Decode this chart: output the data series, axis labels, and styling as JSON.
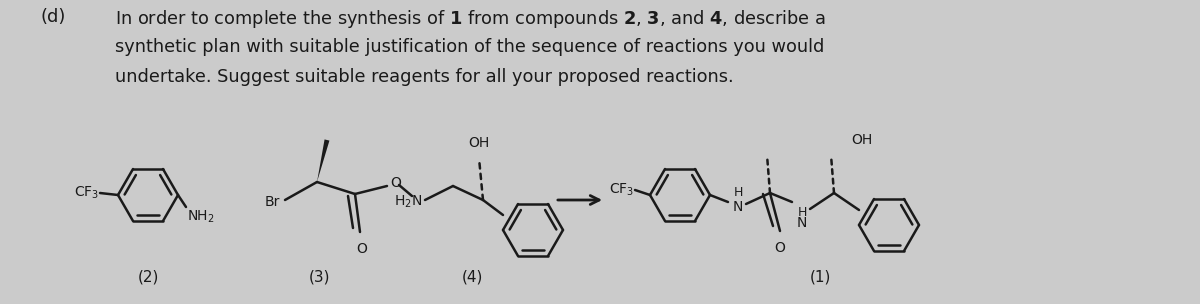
{
  "bg_color": "#cbcbcb",
  "text_color": "#1a1a1a",
  "line1a": "(d)",
  "line1b": "In order to complete the synthesis of ",
  "line1_bold1": "1",
  "line1c": " from compounds ",
  "line1_bold2": "2",
  "line1d": ", ",
  "line1_bold3": "3",
  "line1e": ", and ",
  "line1_bold4": "4",
  "line1f": ", describe a",
  "line2": "synthetic plan with suitable justification of the sequence of reactions you would",
  "line3": "undertake. Suggest suitable reagents for all your proposed reactions.",
  "label2": "(2)",
  "label3": "(3)",
  "label4": "(4)",
  "label1": "(1)"
}
